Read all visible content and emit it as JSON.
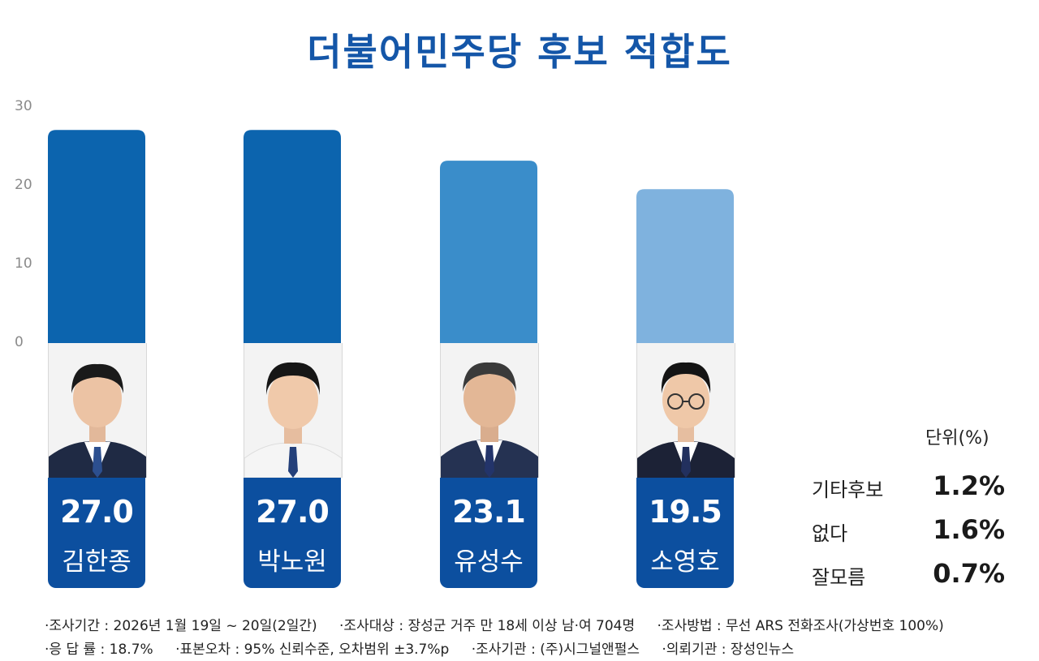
{
  "title": "더불어민주당 후보 적합도",
  "chart_data": {
    "type": "bar",
    "title": "더불어민주당 후보 적합도",
    "categories": [
      "김한종",
      "박노원",
      "유성수",
      "소영호"
    ],
    "values": [
      27.0,
      27.0,
      23.1,
      19.5
    ],
    "value_labels": [
      "27.0",
      "27.0",
      "23.1",
      "19.5"
    ],
    "yticks": [
      "30",
      "20",
      "10",
      "0"
    ],
    "ylim": [
      0,
      30
    ],
    "colors": [
      "#0c64ae",
      "#0c64ae",
      "#3a8dca",
      "#7fb2de"
    ],
    "label_box_color": "#0c4f9f",
    "grid": false
  },
  "unit_label": "단위(%)",
  "extras": [
    {
      "label": "기타후보",
      "value": "1.2%"
    },
    {
      "label": "없다",
      "value": "1.6%"
    },
    {
      "label": "잘모름",
      "value": "0.7%"
    }
  ],
  "notes": {
    "line1": [
      "·조사기간 : 2026년 1월 19일 ~ 20일(2일간)",
      "·조사대상 : 장성군 거주 만 18세 이상 남·여 704명",
      "·조사방법 : 무선 ARS 전화조사(가상번호 100%)"
    ],
    "line2": [
      "·응 답 률 : 18.7%",
      "·표본오차 : 95% 신뢰수준, 오차범위 ±3.7%p",
      "·조사기관 : (주)시그널앤펄스",
      "·의뢰기관 : 장성인뉴스"
    ]
  }
}
